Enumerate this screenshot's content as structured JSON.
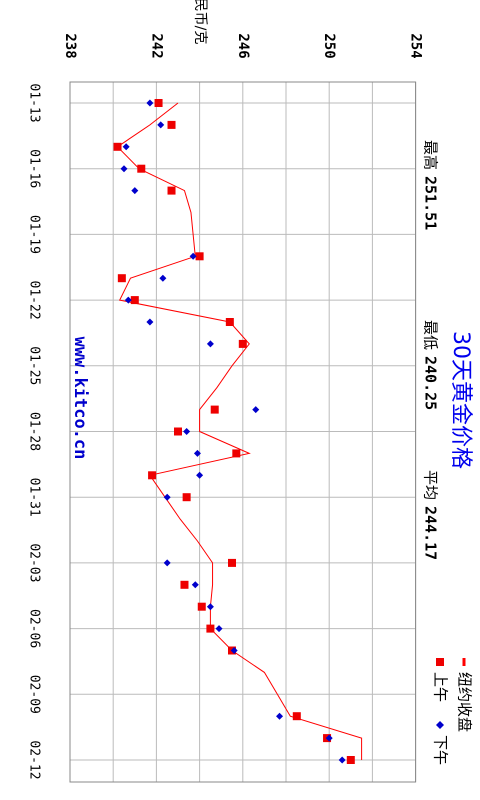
{
  "chart_data": {
    "type": "line",
    "title": "30天黄金价格",
    "ylabel": "人民币/克",
    "watermark": "www.kitco.cn",
    "stats": [
      {
        "label": "最高",
        "value": 251.51
      },
      {
        "label": "最低",
        "value": 240.25
      },
      {
        "label": "平均",
        "value": 244.17
      }
    ],
    "categories": [
      "01-13",
      null,
      null,
      "01-16",
      null,
      null,
      "01-19",
      null,
      null,
      "01-22",
      null,
      null,
      "01-25",
      null,
      null,
      "01-28",
      null,
      null,
      "01-31",
      null,
      null,
      "02-03",
      null,
      null,
      "02-06",
      null,
      null,
      "02-09",
      null,
      null,
      "02-12"
    ],
    "series": [
      {
        "name": "纽约收盘",
        "color": "#ff0000",
        "mark": "line",
        "values": [
          243.0,
          241.7,
          240.2,
          241.2,
          243.3,
          243.6,
          243.7,
          243.8,
          240.8,
          240.3,
          245.4,
          246.3,
          245.5,
          244.8,
          244.0,
          244.0,
          246.3,
          241.7,
          242.4,
          243.1,
          243.9,
          244.6,
          244.6,
          244.5,
          244.5,
          245.5,
          247.0,
          247.6,
          248.2,
          251.5,
          251.5
        ]
      },
      {
        "name": "上午",
        "color": "#ee0000",
        "mark": "square",
        "values": [
          242.1,
          242.7,
          240.2,
          241.3,
          242.7,
          null,
          null,
          244.0,
          240.4,
          241.0,
          245.4,
          246.0,
          null,
          null,
          244.7,
          243.0,
          245.7,
          241.8,
          243.4,
          null,
          null,
          245.5,
          243.3,
          244.1,
          244.5,
          245.5,
          null,
          null,
          248.5,
          249.9,
          251.0
        ]
      },
      {
        "name": "下午",
        "color": "#0000cc",
        "mark": "diamond",
        "values": [
          241.7,
          242.2,
          240.6,
          240.5,
          241.0,
          null,
          null,
          243.7,
          242.3,
          240.7,
          241.7,
          244.5,
          null,
          null,
          246.6,
          243.4,
          243.9,
          244.0,
          242.5,
          null,
          null,
          242.5,
          243.8,
          244.5,
          244.9,
          245.6,
          null,
          null,
          247.7,
          250.0,
          250.6
        ]
      }
    ],
    "ylim": [
      238,
      254
    ],
    "yticks": [
      238,
      242,
      246,
      250,
      254
    ],
    "grid_lines": [
      238,
      240,
      242,
      244,
      246,
      248,
      250,
      252,
      254
    ],
    "grid": true
  }
}
